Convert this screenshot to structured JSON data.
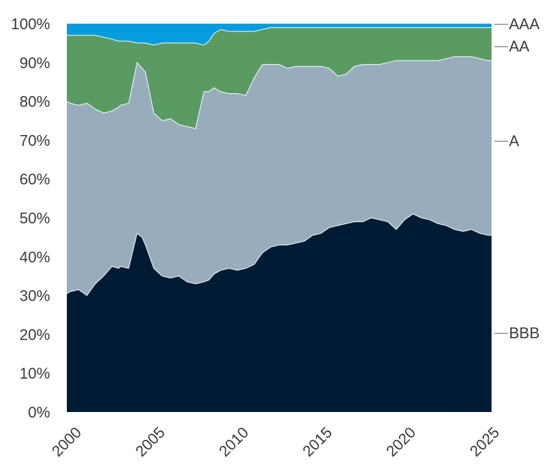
{
  "chart_data": {
    "type": "area",
    "stacked": true,
    "normalized": true,
    "title": "",
    "xlabel": "",
    "ylabel": "",
    "xlim": [
      1999.8,
      2025.2
    ],
    "ylim": [
      0,
      100
    ],
    "x_ticks": [
      "2000",
      "2005",
      "2010",
      "2015",
      "2020",
      "2025"
    ],
    "y_ticks": [
      "0%",
      "10%",
      "20%",
      "30%",
      "40%",
      "50%",
      "60%",
      "70%",
      "80%",
      "90%",
      "100%"
    ],
    "grid": false,
    "legend": "right-edge labels",
    "colors": {
      "BBB": "#001b33",
      "A": "#97adbc",
      "AA": "#599b63",
      "AAA": "#069ddf"
    },
    "x": [
      1999.8,
      2000.0,
      2000.5,
      2001.0,
      2001.5,
      2002.0,
      2002.5,
      2002.9,
      2003.0,
      2003.5,
      2004.0,
      2004.3,
      2004.5,
      2005.0,
      2005.5,
      2006.0,
      2006.5,
      2007.0,
      2007.5,
      2008.0,
      2008.3,
      2008.6,
      2009.0,
      2009.5,
      2010.0,
      2010.5,
      2011.0,
      2011.5,
      2012.0,
      2012.5,
      2013.0,
      2013.5,
      2014.0,
      2014.5,
      2015.0,
      2015.5,
      2016.0,
      2016.5,
      2017.0,
      2017.5,
      2018.0,
      2018.5,
      2019.0,
      2019.5,
      2020.0,
      2020.5,
      2021.0,
      2021.5,
      2022.0,
      2022.5,
      2023.0,
      2023.5,
      2024.0,
      2024.5,
      2025.0,
      2025.2
    ],
    "series": [
      {
        "name": "BBB",
        "values": [
          30.5,
          31.0,
          31.5,
          30.0,
          33.0,
          35.0,
          37.5,
          37.0,
          37.5,
          37.0,
          46.0,
          45.0,
          43.0,
          37.0,
          35.0,
          34.5,
          35.0,
          33.5,
          33.0,
          33.5,
          34.0,
          35.5,
          36.5,
          37.0,
          36.5,
          37.0,
          38.0,
          41.0,
          42.5,
          43.0,
          43.0,
          43.5,
          44.0,
          45.5,
          46.0,
          47.5,
          48.0,
          48.5,
          49.0,
          49.0,
          50.0,
          49.5,
          49.0,
          47.0,
          49.5,
          51.0,
          50.0,
          49.5,
          48.5,
          48.0,
          47.0,
          46.5,
          47.0,
          46.0,
          45.5,
          45.5
        ]
      },
      {
        "name": "A",
        "values": [
          49.5,
          48.5,
          47.5,
          49.5,
          45.0,
          42.0,
          40.0,
          41.5,
          41.5,
          42.5,
          44.0,
          43.5,
          44.5,
          40.0,
          40.0,
          41.0,
          39.0,
          40.0,
          40.0,
          49.0,
          48.5,
          48.0,
          46.0,
          45.0,
          45.5,
          44.5,
          48.0,
          48.5,
          47.0,
          46.5,
          45.5,
          45.5,
          45.0,
          43.5,
          43.0,
          41.0,
          38.5,
          38.5,
          40.0,
          40.5,
          39.5,
          40.0,
          41.0,
          43.5,
          41.0,
          39.5,
          40.5,
          41.0,
          42.0,
          43.0,
          44.5,
          45.0,
          44.5,
          45.0,
          45.0,
          45.0
        ]
      },
      {
        "name": "AA",
        "values": [
          17.0,
          17.5,
          18.0,
          17.5,
          19.0,
          19.5,
          18.5,
          17.0,
          16.5,
          16.0,
          5.0,
          6.5,
          7.5,
          17.5,
          20.0,
          19.5,
          21.0,
          21.5,
          22.0,
          12.0,
          13.0,
          14.0,
          16.0,
          16.0,
          16.0,
          16.5,
          12.0,
          9.0,
          9.5,
          9.5,
          10.5,
          10.0,
          10.0,
          10.0,
          10.0,
          10.5,
          12.5,
          12.0,
          10.0,
          9.5,
          9.5,
          9.5,
          9.0,
          8.5,
          8.5,
          8.5,
          8.5,
          8.5,
          8.5,
          8.0,
          7.5,
          7.5,
          7.5,
          8.0,
          8.5,
          8.5
        ]
      },
      {
        "name": "AAA",
        "values": [
          3.0,
          3.0,
          3.0,
          3.0,
          3.0,
          3.5,
          4.0,
          4.5,
          4.5,
          4.5,
          5.0,
          5.0,
          5.0,
          5.5,
          5.0,
          5.0,
          5.0,
          5.0,
          5.0,
          5.5,
          4.5,
          2.5,
          1.5,
          2.0,
          2.0,
          2.0,
          2.0,
          1.5,
          1.0,
          1.0,
          1.0,
          1.0,
          1.0,
          1.0,
          1.0,
          1.0,
          1.0,
          1.0,
          1.0,
          1.0,
          1.0,
          1.0,
          1.0,
          1.0,
          1.0,
          1.0,
          1.0,
          1.0,
          1.0,
          1.0,
          1.0,
          1.0,
          1.0,
          1.0,
          1.0,
          1.0
        ]
      }
    ]
  }
}
